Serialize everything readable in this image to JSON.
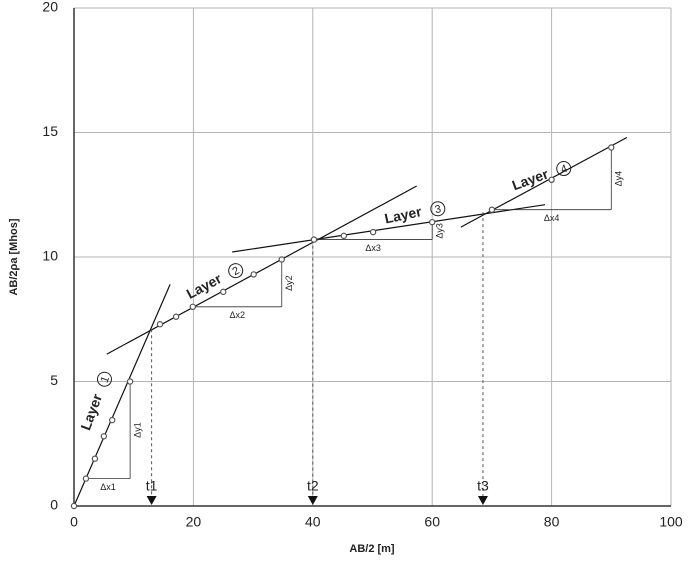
{
  "chart_data": {
    "type": "scatter",
    "xlabel": "AB/2 [m]",
    "ylabel": "AB/2ρa  [Mhos]",
    "xlim": [
      0,
      100
    ],
    "ylim": [
      0,
      20
    ],
    "xticks": [
      0,
      20,
      40,
      60,
      80,
      100
    ],
    "yticks": [
      0,
      5,
      10,
      15,
      20
    ],
    "grid": true,
    "color": "#555555",
    "x": [
      0,
      2,
      3.5,
      5,
      6.4,
      9.4,
      14.4,
      17.1,
      19.9,
      25,
      30.1,
      34.8,
      40.2,
      45.2,
      50.1,
      60,
      70,
      80,
      90
    ],
    "values": [
      0,
      1.1,
      1.9,
      2.8,
      3.45,
      5.0,
      7.3,
      7.6,
      8.0,
      8.6,
      9.3,
      9.9,
      10.7,
      10.85,
      11.0,
      11.4,
      11.9,
      13.1,
      14.4
    ],
    "fit_lines": [
      {
        "x": [
          0,
          16.1
        ],
        "values": [
          0,
          8.9
        ]
      },
      {
        "x": [
          5.5,
          57.4
        ],
        "values": [
          6.1,
          12.85
        ]
      },
      {
        "x": [
          26.5,
          78.9
        ],
        "values": [
          10.2,
          12.1
        ]
      },
      {
        "x": [
          64.8,
          92.6
        ],
        "values": [
          11.2,
          14.8
        ]
      }
    ],
    "layers": [
      {
        "text": "Layer",
        "number": "1"
      },
      {
        "text": "Layer",
        "number": "2"
      },
      {
        "text": "Layer",
        "number": "3"
      },
      {
        "text": "Layer",
        "number": "4"
      }
    ],
    "deltas": [
      {
        "label_x": "Δx1",
        "label_y": "Δy1",
        "x": [
          2,
          9.4
        ],
        "y": [
          1.1,
          5.0
        ]
      },
      {
        "label_x": "Δx2",
        "label_y": "Δy2",
        "x": [
          19.9,
          34.8
        ],
        "y": [
          8.0,
          9.9
        ]
      },
      {
        "label_x": "Δx3",
        "label_y": "Δy3",
        "x": [
          40.2,
          60
        ],
        "y": [
          10.7,
          11.4
        ]
      },
      {
        "label_x": "Δx4",
        "label_y": "Δy4",
        "x": [
          70,
          90
        ],
        "y": [
          11.9,
          14.4
        ]
      }
    ],
    "breaks": [
      {
        "label": "t1",
        "x": 13,
        "y": 7.1
      },
      {
        "label": "t2",
        "x": 40,
        "y": 10.7
      },
      {
        "label": "t3",
        "x": 68.5,
        "y": 11.8
      }
    ]
  }
}
